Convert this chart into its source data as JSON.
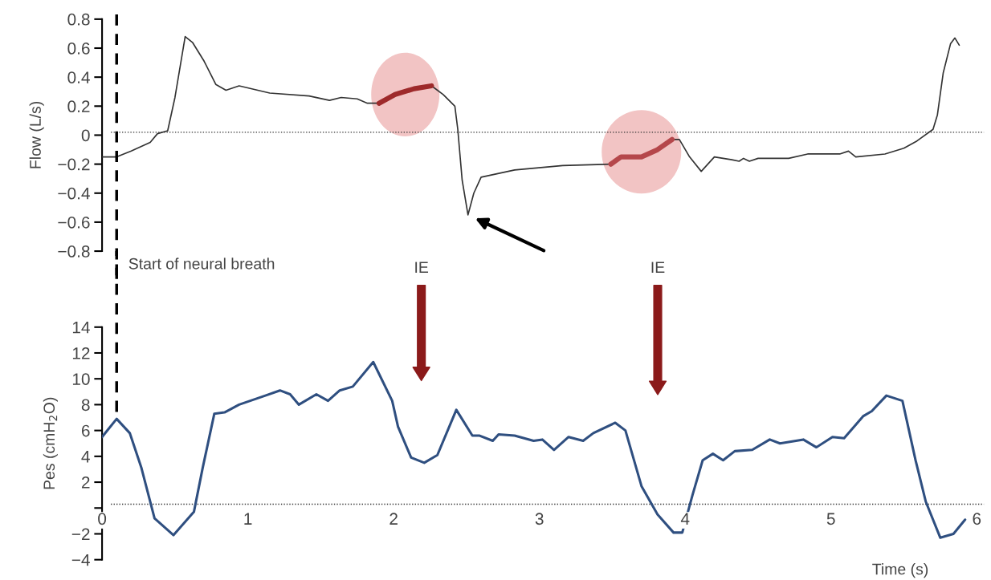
{
  "chart_data": [
    {
      "type": "line",
      "ylabel": "Flow (L/s)",
      "xlim": [
        0,
        6.05
      ],
      "ylim": [
        -0.8,
        0.8
      ],
      "yticks": [
        {
          "value": 0.8,
          "label": "0.8"
        },
        {
          "value": 0.6,
          "label": "0.6"
        },
        {
          "value": 0.4,
          "label": "0.4"
        },
        {
          "value": 0.2,
          "label": "0.2"
        },
        0,
        {
          "value": -0.2,
          "label": "−0.2"
        },
        {
          "value": -0.4,
          "label": "−0.4"
        },
        {
          "value": -0.6,
          "label": "−0.6"
        },
        {
          "value": -0.8,
          "label": "−0.8"
        }
      ],
      "tick_labels": "y",
      "grid": false,
      "legend": false,
      "series": [
        {
          "color": "#333333",
          "x": [
            0,
            0.1,
            0.2,
            0.33,
            0.38,
            0.45,
            0.5,
            0.57,
            0.62,
            0.7,
            0.78,
            0.85,
            0.94,
            1.15,
            1.42,
            1.56,
            1.64,
            1.75,
            1.82,
            1.89,
            2.01,
            2.14,
            2.26,
            2.34,
            2.42,
            2.44,
            2.47,
            2.51,
            2.55,
            2.6,
            2.83,
            3.16,
            3.49,
            3.56,
            3.7,
            3.81,
            3.91,
            3.96,
            4.03,
            4.11,
            4.2,
            4.32,
            4.37,
            4.4,
            4.44,
            4.5,
            4.71,
            4.84,
            5.06,
            5.12,
            5.17,
            5.37,
            5.5,
            5.59,
            5.7,
            5.73,
            5.77,
            5.82,
            5.85,
            5.88
          ],
          "values": [
            -0.15,
            -0.15,
            -0.11,
            -0.05,
            0.01,
            0.03,
            0.26,
            0.68,
            0.64,
            0.51,
            0.35,
            0.31,
            0.34,
            0.29,
            0.27,
            0.24,
            0.26,
            0.25,
            0.22,
            0.22,
            null,
            null,
            0.34,
            0.28,
            0.2,
            0.04,
            -0.31,
            -0.55,
            -0.4,
            -0.29,
            -0.24,
            -0.21,
            -0.2,
            null,
            null,
            null,
            -0.03,
            -0.03,
            -0.15,
            -0.25,
            -0.15,
            -0.17,
            -0.18,
            -0.16,
            -0.18,
            -0.16,
            -0.16,
            -0.13,
            -0.13,
            -0.11,
            -0.15,
            -0.13,
            -0.09,
            -0.04,
            0.04,
            0.14,
            0.43,
            0.63,
            0.67,
            0.62
          ]
        },
        {
          "color": "#9e2a2b",
          "x": [
            1.9,
            2.01,
            2.14,
            2.26
          ],
          "values": [
            0.22,
            0.28,
            0.32,
            0.34
          ]
        },
        {
          "color": "#b5474b",
          "x": [
            3.49,
            3.56,
            3.7,
            3.81,
            3.91
          ],
          "values": [
            -0.2,
            -0.15,
            -0.15,
            -0.1,
            -0.03
          ]
        }
      ],
      "ref_lines": [
        {
          "axis": "x",
          "value": 0.1,
          "label": "Start of neural breath",
          "color": "#000000",
          "line_style": "dashed"
        },
        {
          "axis": "y",
          "value": 0.02,
          "color": "#333333",
          "line_style": "dotted"
        }
      ]
    },
    {
      "type": "line",
      "xlabel": "Time (s)",
      "ylabel": "Pes (cmH$_{2}$O)",
      "xlim": [
        0,
        6.05
      ],
      "ylim": [
        -4,
        14
      ],
      "xticks": [
        0,
        1,
        2,
        3,
        4,
        5,
        6
      ],
      "yticks": [
        14,
        12,
        10,
        8,
        6,
        4,
        2,
        {
          "value": 0,
          "label": null
        },
        {
          "value": -2,
          "label": "−2"
        },
        {
          "value": -4,
          "label": "−4"
        }
      ],
      "grid": false,
      "legend": false,
      "series": [
        {
          "color": "#2f4f80",
          "x": [
            0,
            0.1,
            0.19,
            0.27,
            0.36,
            0.49,
            0.56,
            0.63,
            0.69,
            0.77,
            0.84,
            0.94,
            1.12,
            1.22,
            1.29,
            1.35,
            1.47,
            1.55,
            1.63,
            1.72,
            1.86,
            1.99,
            2.03,
            2.12,
            2.21,
            2.3,
            2.43,
            2.54,
            2.59,
            2.68,
            2.72,
            2.83,
            2.96,
            3.02,
            3.1,
            3.2,
            3.3,
            3.37,
            3.52,
            3.59,
            3.7,
            3.81,
            3.92,
            3.98,
            4.05,
            4.12,
            4.19,
            4.26,
            4.34,
            4.46,
            4.58,
            4.65,
            4.81,
            4.9,
            5.01,
            5.09,
            5.22,
            5.28,
            5.38,
            5.49,
            5.58,
            5.65,
            5.75,
            5.84,
            5.92
          ],
          "values": [
            5.5,
            6.9,
            5.8,
            3.1,
            -0.8,
            -2.1,
            -1.2,
            -0.3,
            3.1,
            7.3,
            7.4,
            8.0,
            8.7,
            9.1,
            8.8,
            8.0,
            8.8,
            8.3,
            9.1,
            9.4,
            11.3,
            8.3,
            6.3,
            3.9,
            3.5,
            4.1,
            7.6,
            5.6,
            5.6,
            5.2,
            5.7,
            5.6,
            5.2,
            5.3,
            4.5,
            5.5,
            5.2,
            5.8,
            6.6,
            6.0,
            1.7,
            -0.5,
            -1.9,
            -1.9,
            1.0,
            3.7,
            4.2,
            3.7,
            4.4,
            4.5,
            5.3,
            5.0,
            5.3,
            4.7,
            5.5,
            5.4,
            7.1,
            7.5,
            8.7,
            8.3,
            3.7,
            0.5,
            -2.3,
            -2.0,
            -0.9
          ]
        }
      ],
      "ref_lines": [
        {
          "axis": "x",
          "value": 0.1,
          "color": "#000000",
          "line_style": "dashed"
        },
        {
          "axis": "y",
          "value": 0.3,
          "color": "#333333",
          "line_style": "dotted"
        }
      ],
      "annotations": [
        "IE",
        "IE"
      ]
    }
  ]
}
